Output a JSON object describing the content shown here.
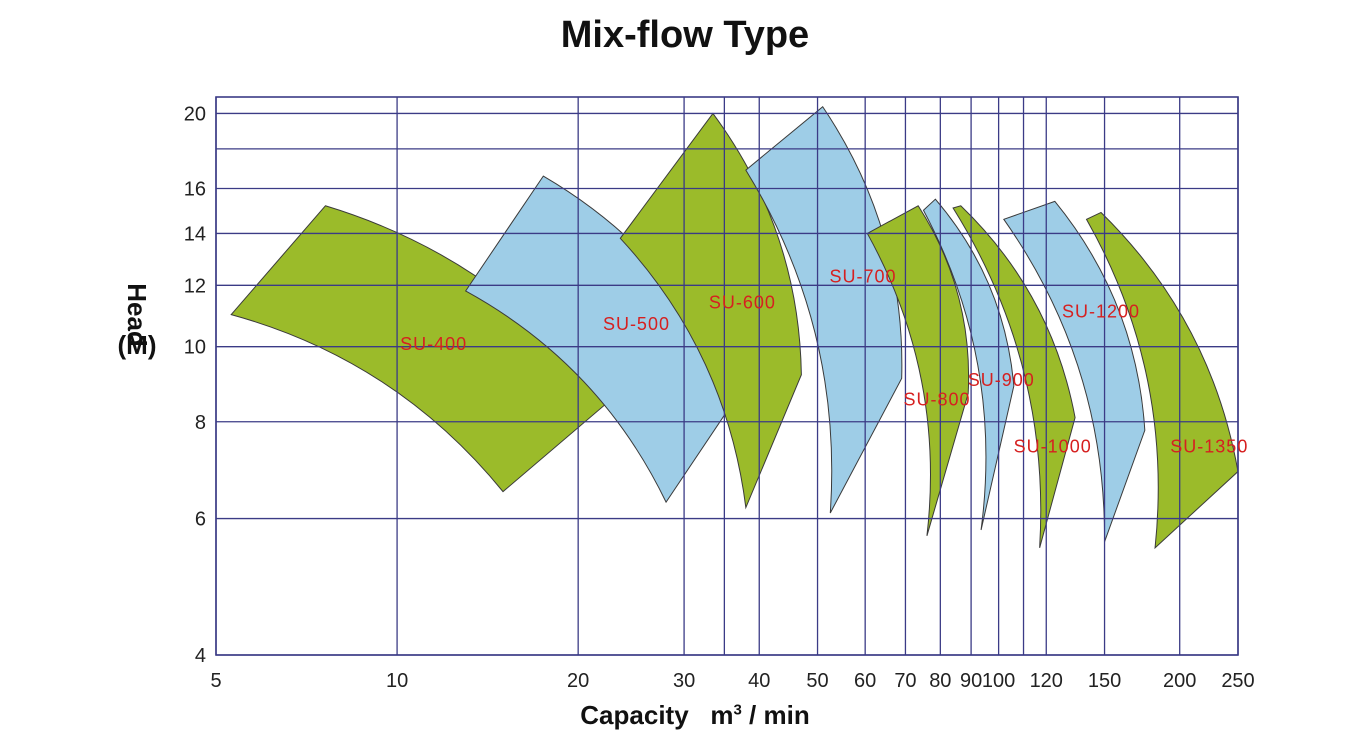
{
  "chart_data": {
    "type": "area",
    "title": "Mix-flow Type",
    "xlabel": "Capacity",
    "xlabel_unit_base": "m",
    "xlabel_unit_sup": "3",
    "xlabel_unit_rest": "/ min",
    "ylabel_line1": "Head",
    "ylabel_line2": "(M)",
    "x_scale": "log",
    "y_scale": "log",
    "xlim": [
      5,
      250
    ],
    "ylim": [
      4,
      21
    ],
    "grid": true,
    "x_ticks": [
      5,
      10,
      20,
      30,
      40,
      50,
      60,
      70,
      80,
      90,
      100,
      120,
      150,
      200,
      250
    ],
    "y_ticks": [
      4,
      6,
      8,
      10,
      12,
      14,
      16,
      20
    ],
    "extra_h_grid": [
      18
    ],
    "extra_v_grid": [
      35,
      110
    ],
    "colors": {
      "green": "#9bbb2a",
      "blue": "#9ecde7",
      "grid": "#3b3b86",
      "label": "#d62020"
    },
    "series": [
      {
        "name": "SU-400",
        "color": "green",
        "label_at": [
          11.5,
          9.9
        ],
        "corners": [
          [
            5.3,
            11.0
          ],
          [
            7.6,
            15.2
          ],
          [
            22.5,
            8.5
          ],
          [
            15,
            6.5
          ]
        ]
      },
      {
        "name": "SU-500",
        "color": "blue",
        "label_at": [
          25,
          10.5
        ],
        "corners": [
          [
            13,
            11.8
          ],
          [
            17.5,
            16.6
          ],
          [
            37,
            8.7
          ],
          [
            28,
            6.3
          ]
        ]
      },
      {
        "name": "SU-600",
        "color": "green",
        "label_at": [
          37.5,
          11.2
        ],
        "corners": [
          [
            23.5,
            13.8
          ],
          [
            33.5,
            20.0
          ],
          [
            47,
            9.2
          ],
          [
            38,
            6.2
          ]
        ]
      },
      {
        "name": "SU-700",
        "color": "blue",
        "label_at": [
          59.5,
          12.1
        ],
        "corners": [
          [
            38,
            16.9
          ],
          [
            51,
            20.4
          ],
          [
            69,
            9.1
          ],
          [
            52.5,
            6.1
          ]
        ]
      },
      {
        "name": "SU-800",
        "color": "green",
        "label_at": [
          79,
          8.4
        ],
        "corners": [
          [
            60.5,
            14.0
          ],
          [
            73.5,
            15.2
          ],
          [
            89,
            8.7
          ],
          [
            76,
            5.7
          ]
        ]
      },
      {
        "name": "SU-900",
        "color": "blue",
        "label_at": [
          101,
          8.9
        ],
        "corners": [
          [
            75,
            15.0
          ],
          [
            78.5,
            15.5
          ],
          [
            106,
            8.9
          ],
          [
            93.5,
            5.8
          ]
        ]
      },
      {
        "name": "SU-1000",
        "color": "green",
        "label_at": [
          123,
          7.3
        ],
        "corners": [
          [
            84,
            15.1
          ],
          [
            86.5,
            15.2
          ],
          [
            134,
            8.1
          ],
          [
            117,
            5.5
          ]
        ]
      },
      {
        "name": "SU-1200",
        "color": "blue",
        "label_at": [
          148,
          10.9
        ],
        "corners": [
          [
            102,
            14.6
          ],
          [
            124,
            15.4
          ],
          [
            175,
            7.8
          ],
          [
            150,
            5.6
          ]
        ]
      },
      {
        "name": "SU-1350",
        "color": "green",
        "label_at": [
          224,
          7.3
        ],
        "corners": [
          [
            140,
            14.6
          ],
          [
            148,
            14.9
          ],
          [
            250,
            6.9
          ],
          [
            182,
            5.5
          ]
        ]
      }
    ]
  }
}
